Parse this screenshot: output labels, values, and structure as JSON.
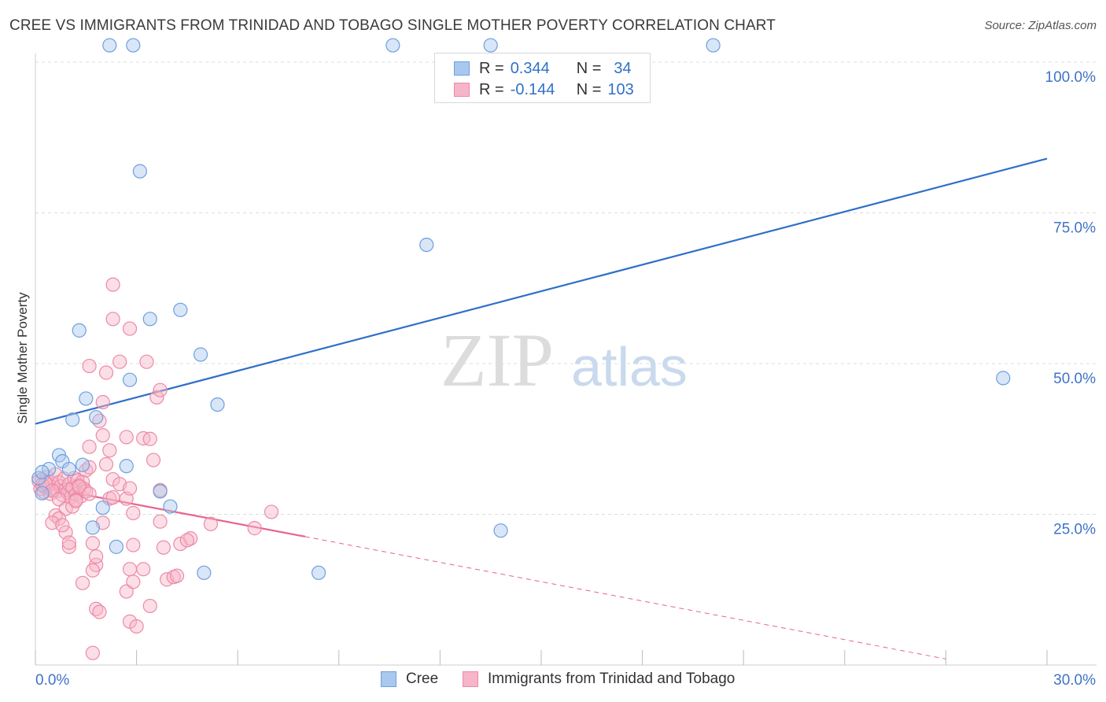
{
  "title": "CREE VS IMMIGRANTS FROM TRINIDAD AND TOBAGO SINGLE MOTHER POVERTY CORRELATION CHART",
  "source": "Source: ZipAtlas.com",
  "watermark": {
    "zip": "ZIP",
    "atlas": "atlas"
  },
  "legend": {
    "rows": [
      {
        "r_label": "R =",
        "r_value": "0.344",
        "n_label": "N =",
        "n_value": "34"
      },
      {
        "r_label": "R =",
        "r_value": "-0.144",
        "n_label": "N =",
        "n_value": "103"
      }
    ]
  },
  "colors": {
    "cree_fill": "#a9c8ef",
    "cree_stroke": "#6f9fdc",
    "cree_line": "#2f6fc9",
    "tt_fill": "#f6b5c8",
    "tt_stroke": "#ec8aa8",
    "tt_line": "#e8648f",
    "axis_label": "#3f73c6",
    "grid": "#dddddd"
  },
  "chart_data": {
    "type": "scatter",
    "title": "CREE VS IMMIGRANTS FROM TRINIDAD AND TOBAGO SINGLE MOTHER POVERTY CORRELATION CHART",
    "xlabel": "",
    "ylabel": "Single Mother Poverty",
    "xlim": [
      0,
      30
    ],
    "ylim": [
      0,
      100
    ],
    "x_tick_labels": [
      "0.0%",
      "30.0%"
    ],
    "y_tick_labels": [
      "100.0%",
      "75.0%",
      "50.0%",
      "25.0%"
    ],
    "y_ticks": [
      100,
      75,
      50,
      25
    ],
    "grid": true,
    "series": [
      {
        "name": "Cree",
        "R": 0.344,
        "N": 34,
        "trend": {
          "x0": 0,
          "y0": 40.0,
          "x1": 30,
          "y1": 84.0
        },
        "points": [
          [
            0.1,
            31
          ],
          [
            0.2,
            28.5
          ],
          [
            0.4,
            32.5
          ],
          [
            0.7,
            34.8
          ],
          [
            0.8,
            33.8
          ],
          [
            1.0,
            32.5
          ],
          [
            1.1,
            40.7
          ],
          [
            1.3,
            55.5
          ],
          [
            1.4,
            33.2
          ],
          [
            1.5,
            44.2
          ],
          [
            1.7,
            22.8
          ],
          [
            1.8,
            41.1
          ],
          [
            2.0,
            26.1
          ],
          [
            2.2,
            102.8
          ],
          [
            2.4,
            19.6
          ],
          [
            2.7,
            33.0
          ],
          [
            2.8,
            47.3
          ],
          [
            2.9,
            102.8
          ],
          [
            3.1,
            81.9
          ],
          [
            3.4,
            57.4
          ],
          [
            3.7,
            28.8
          ],
          [
            4.0,
            26.3
          ],
          [
            4.3,
            58.9
          ],
          [
            4.9,
            51.5
          ],
          [
            5.0,
            15.3
          ],
          [
            5.4,
            43.2
          ],
          [
            8.4,
            15.3
          ],
          [
            10.6,
            102.8
          ],
          [
            11.6,
            69.7
          ],
          [
            13.5,
            102.8
          ],
          [
            13.8,
            22.3
          ],
          [
            20.1,
            102.8
          ],
          [
            28.7,
            47.6
          ],
          [
            0.2,
            32.0
          ]
        ]
      },
      {
        "name": "Immigrants from Trinidad and Tobago",
        "R": -0.144,
        "N": 103,
        "trend": {
          "x0": 0,
          "y0": 29.8,
          "x1": 8.0,
          "y1": 21.3,
          "dash_x1": 27.0,
          "dash_y1": 1.0
        },
        "points": [
          [
            0.1,
            30.5
          ],
          [
            0.15,
            29.2
          ],
          [
            0.2,
            30.8
          ],
          [
            0.25,
            28.7
          ],
          [
            0.3,
            29.5
          ],
          [
            0.35,
            31.2
          ],
          [
            0.4,
            29.8
          ],
          [
            0.45,
            28.4
          ],
          [
            0.5,
            30.1
          ],
          [
            0.55,
            29.0
          ],
          [
            0.6,
            31.6
          ],
          [
            0.65,
            28.9
          ],
          [
            0.7,
            30.3
          ],
          [
            0.75,
            29.6
          ],
          [
            0.8,
            28.2
          ],
          [
            0.85,
            30.9
          ],
          [
            0.9,
            29.1
          ],
          [
            0.95,
            28.6
          ],
          [
            1.0,
            30.0
          ],
          [
            1.05,
            27.8
          ],
          [
            1.1,
            29.4
          ],
          [
            1.15,
            31.0
          ],
          [
            1.2,
            28.3
          ],
          [
            1.25,
            30.6
          ],
          [
            1.3,
            29.8
          ],
          [
            1.35,
            28.0
          ],
          [
            1.4,
            30.4
          ],
          [
            1.45,
            29.2
          ],
          [
            1.5,
            28.8
          ],
          [
            0.2,
            29.9
          ],
          [
            0.3,
            30.2
          ],
          [
            0.5,
            28.9
          ],
          [
            0.7,
            27.5
          ],
          [
            0.9,
            25.9
          ],
          [
            0.6,
            24.8
          ],
          [
            0.7,
            24.3
          ],
          [
            0.5,
            23.6
          ],
          [
            0.9,
            22.0
          ],
          [
            1.0,
            19.6
          ],
          [
            1.1,
            26.3
          ],
          [
            1.2,
            27.4
          ],
          [
            1.3,
            29.6
          ],
          [
            1.5,
            32.3
          ],
          [
            1.6,
            36.2
          ],
          [
            1.7,
            20.2
          ],
          [
            1.8,
            16.6
          ],
          [
            1.9,
            40.5
          ],
          [
            2.0,
            38.1
          ],
          [
            2.1,
            33.3
          ],
          [
            2.2,
            35.6
          ],
          [
            1.4,
            13.6
          ],
          [
            1.7,
            15.7
          ],
          [
            1.8,
            18.0
          ],
          [
            1.8,
            9.3
          ],
          [
            1.9,
            8.8
          ],
          [
            1.7,
            2.0
          ],
          [
            2.0,
            43.6
          ],
          [
            2.3,
            30.8
          ],
          [
            2.5,
            30.0
          ],
          [
            2.2,
            27.6
          ],
          [
            2.3,
            27.8
          ],
          [
            2.1,
            48.5
          ],
          [
            1.6,
            49.6
          ],
          [
            2.3,
            63.1
          ],
          [
            2.3,
            57.4
          ],
          [
            2.5,
            50.3
          ],
          [
            2.7,
            37.8
          ],
          [
            2.7,
            27.6
          ],
          [
            2.8,
            29.3
          ],
          [
            2.8,
            55.8
          ],
          [
            2.9,
            25.2
          ],
          [
            2.9,
            19.9
          ],
          [
            2.7,
            12.2
          ],
          [
            2.8,
            15.9
          ],
          [
            2.8,
            7.2
          ],
          [
            2.9,
            13.8
          ],
          [
            3.0,
            6.4
          ],
          [
            3.2,
            15.9
          ],
          [
            3.2,
            37.6
          ],
          [
            3.3,
            50.3
          ],
          [
            3.4,
            9.8
          ],
          [
            3.4,
            37.5
          ],
          [
            3.5,
            34.0
          ],
          [
            3.6,
            44.4
          ],
          [
            3.7,
            45.6
          ],
          [
            3.7,
            29.0
          ],
          [
            3.7,
            23.8
          ],
          [
            3.8,
            19.5
          ],
          [
            3.9,
            14.2
          ],
          [
            4.1,
            14.6
          ],
          [
            4.2,
            14.8
          ],
          [
            4.3,
            20.1
          ],
          [
            4.6,
            21.0
          ],
          [
            4.5,
            20.7
          ],
          [
            5.2,
            23.4
          ],
          [
            6.5,
            22.7
          ],
          [
            7.0,
            25.4
          ],
          [
            1.2,
            27.2
          ],
          [
            1.6,
            28.4
          ],
          [
            1.6,
            32.8
          ],
          [
            2.0,
            23.6
          ],
          [
            0.8,
            23.2
          ],
          [
            1.0,
            20.3
          ]
        ]
      }
    ]
  },
  "bottom_legend": [
    {
      "label": "Cree"
    },
    {
      "label": "Immigrants from Trinidad and Tobago"
    }
  ]
}
